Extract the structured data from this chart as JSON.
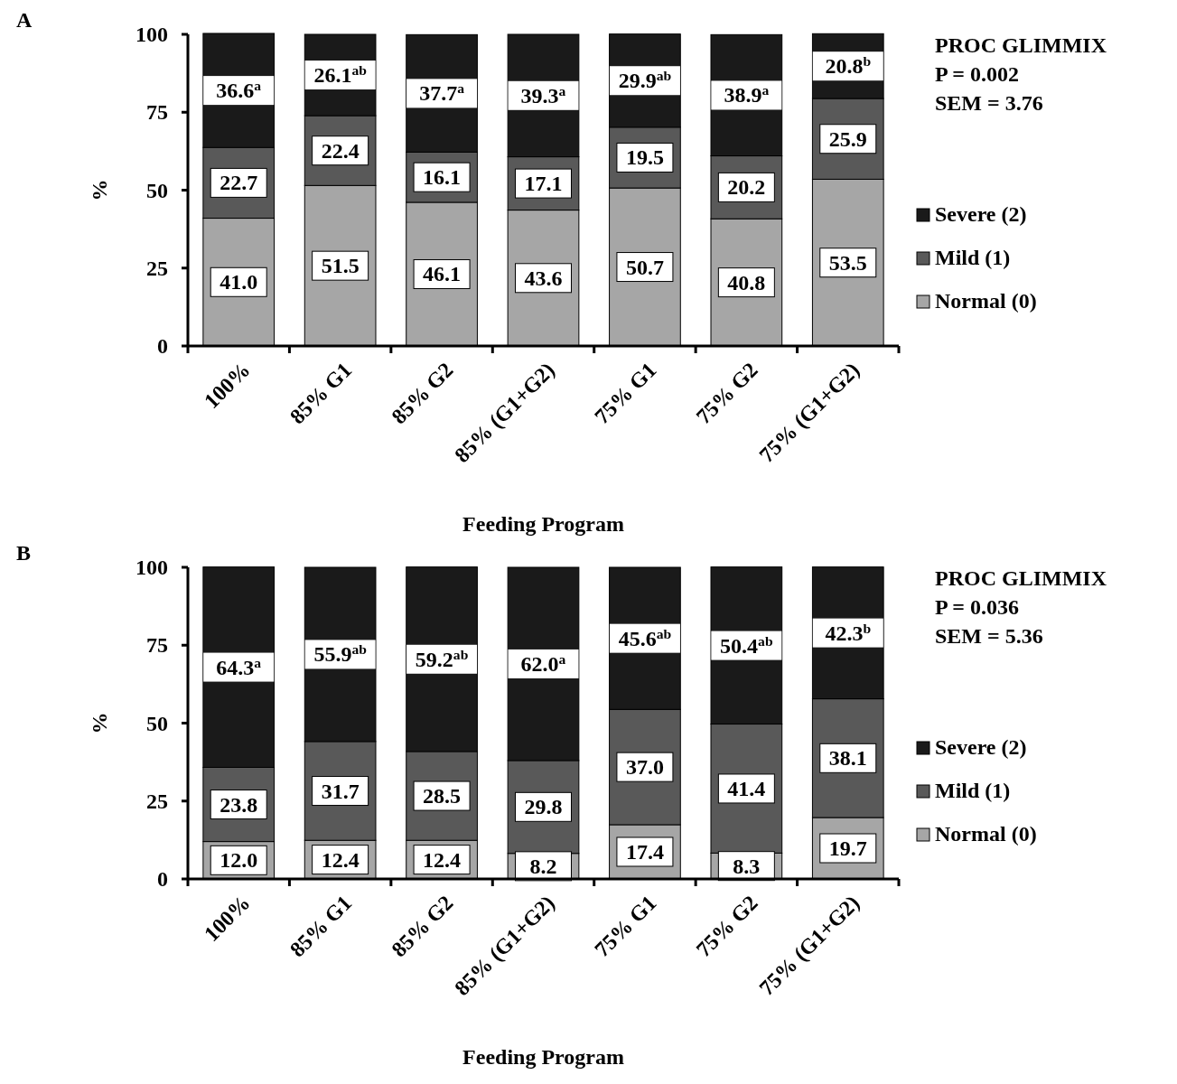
{
  "chart_data": [
    {
      "type": "bar",
      "title": "A",
      "stacked": true,
      "xlabel": "Feeding Program",
      "ylabel": "%",
      "ylim": [
        0,
        100
      ],
      "yticks": [
        0,
        25,
        50,
        75,
        100
      ],
      "grid": false,
      "legend": "right",
      "categories": [
        "100%",
        "85% G1",
        "85% G2",
        "85% (G1+G2)",
        "75% G1",
        "75% G2",
        "75% (G1+G2)"
      ],
      "series": [
        {
          "name": "Normal (0)",
          "color": "#a6a6a6",
          "values": [
            41.0,
            51.5,
            46.1,
            43.6,
            50.7,
            40.8,
            53.5
          ],
          "value_labels": [
            "41.0",
            "51.5",
            "46.1",
            "43.6",
            "50.7",
            "40.8",
            "53.5"
          ]
        },
        {
          "name": "Mild (1)",
          "color": "#595959",
          "values": [
            22.7,
            22.4,
            16.1,
            17.1,
            19.5,
            20.2,
            25.9
          ],
          "value_labels": [
            "22.7",
            "22.4",
            "16.1",
            "17.1",
            "19.5",
            "20.2",
            "25.9"
          ]
        },
        {
          "name": "Severe (2)",
          "color": "#1a1a1a",
          "values": [
            36.6,
            26.1,
            37.7,
            39.3,
            29.9,
            38.9,
            20.8
          ],
          "value_labels": [
            "36.6$^{a}$",
            "26.1$^{ab}$",
            "37.7$^{a}$",
            "39.3$^{a}$",
            "29.9$^{ab}$",
            "38.9$^{a}$",
            "20.8$^{b}$"
          ]
        }
      ],
      "annotations": [
        "PROC GLIMMIX",
        "P = 0.002",
        "SEM = 3.76"
      ]
    },
    {
      "type": "bar",
      "title": "B",
      "stacked": true,
      "xlabel": "Feeding Program",
      "ylabel": "%",
      "ylim": [
        0,
        100
      ],
      "yticks": [
        0,
        25,
        50,
        75,
        100
      ],
      "grid": false,
      "legend": "right",
      "categories": [
        "100%",
        "85% G1",
        "85% G2",
        "85% (G1+G2)",
        "75% G1",
        "75% G2",
        "75% (G1+G2)"
      ],
      "series": [
        {
          "name": "Normal (0)",
          "color": "#a6a6a6",
          "values": [
            12.0,
            12.4,
            12.4,
            8.2,
            17.4,
            8.3,
            19.7
          ],
          "value_labels": [
            "12.0",
            "12.4",
            "12.4",
            "8.2",
            "17.4",
            "8.3",
            "19.7"
          ]
        },
        {
          "name": "Mild (1)",
          "color": "#595959",
          "values": [
            23.8,
            31.7,
            28.5,
            29.8,
            37.0,
            41.4,
            38.1
          ],
          "value_labels": [
            "23.8",
            "31.7",
            "28.5",
            "29.8",
            "37.0",
            "41.4",
            "38.1"
          ]
        },
        {
          "name": "Severe (2)",
          "color": "#1a1a1a",
          "values": [
            64.3,
            55.9,
            59.2,
            62.0,
            45.6,
            50.4,
            42.3
          ],
          "value_labels": [
            "64.3$^{a}$",
            "55.9$^{ab}$",
            "59.2$^{ab}$",
            "62.0$^{a}$",
            "45.6$^{ab}$",
            "50.4$^{ab}$",
            "42.3$^{b}$"
          ]
        }
      ],
      "annotations": [
        "PROC GLIMMIX",
        "P = 0.036",
        "SEM = 5.36"
      ]
    }
  ]
}
